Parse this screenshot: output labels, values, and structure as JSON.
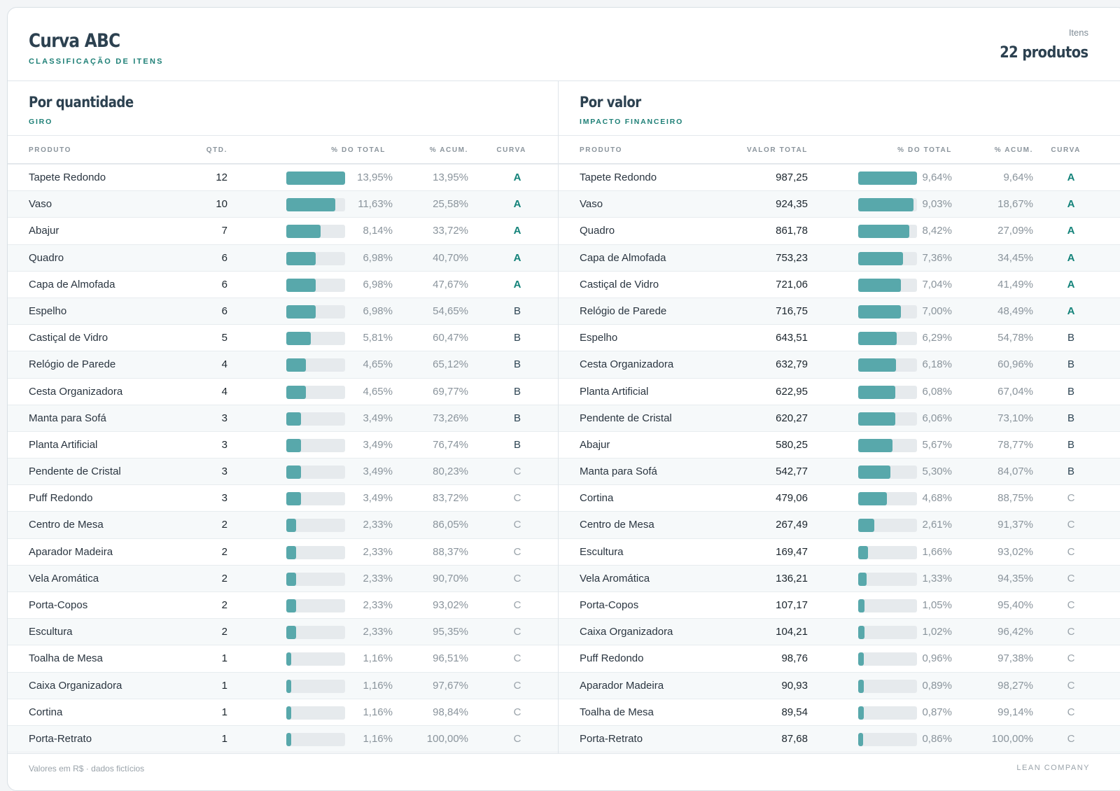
{
  "header": {
    "title": "Curva ABC",
    "subtitle": "CLASSIFICAÇÃO DE ITENS",
    "items_label": "Itens",
    "items_value": "22 produtos"
  },
  "colors": {
    "accent": "#1f8077",
    "bar": "#58a8ab",
    "bar_track": "#e6eaed"
  },
  "left": {
    "title": "Por quantidade",
    "subtitle": "GIRO",
    "columns": [
      "PRODUTO",
      "QTD.",
      "% DO TOTAL",
      "% ACUM.",
      "CURVA"
    ],
    "rows": [
      {
        "name": "Tapete Redondo",
        "value": "12",
        "pct": "13,95%",
        "acc": "13,95%",
        "curve": "A",
        "share": 0.1395
      },
      {
        "name": "Vaso",
        "value": "10",
        "pct": "11,63%",
        "acc": "25,58%",
        "curve": "A",
        "share": 0.1163
      },
      {
        "name": "Abajur",
        "value": "7",
        "pct": "8,14%",
        "acc": "33,72%",
        "curve": "A",
        "share": 0.0814
      },
      {
        "name": "Quadro",
        "value": "6",
        "pct": "6,98%",
        "acc": "40,70%",
        "curve": "A",
        "share": 0.0698
      },
      {
        "name": "Capa de Almofada",
        "value": "6",
        "pct": "6,98%",
        "acc": "47,67%",
        "curve": "A",
        "share": 0.0698
      },
      {
        "name": "Espelho",
        "value": "6",
        "pct": "6,98%",
        "acc": "54,65%",
        "curve": "B",
        "share": 0.0698
      },
      {
        "name": "Castiçal de Vidro",
        "value": "5",
        "pct": "5,81%",
        "acc": "60,47%",
        "curve": "B",
        "share": 0.0581
      },
      {
        "name": "Relógio de Parede",
        "value": "4",
        "pct": "4,65%",
        "acc": "65,12%",
        "curve": "B",
        "share": 0.0465
      },
      {
        "name": "Cesta Organizadora",
        "value": "4",
        "pct": "4,65%",
        "acc": "69,77%",
        "curve": "B",
        "share": 0.0465
      },
      {
        "name": "Manta para Sofá",
        "value": "3",
        "pct": "3,49%",
        "acc": "73,26%",
        "curve": "B",
        "share": 0.0349
      },
      {
        "name": "Planta Artificial",
        "value": "3",
        "pct": "3,49%",
        "acc": "76,74%",
        "curve": "B",
        "share": 0.0349
      },
      {
        "name": "Pendente de Cristal",
        "value": "3",
        "pct": "3,49%",
        "acc": "80,23%",
        "curve": "C",
        "share": 0.0349
      },
      {
        "name": "Puff Redondo",
        "value": "3",
        "pct": "3,49%",
        "acc": "83,72%",
        "curve": "C",
        "share": 0.0349
      },
      {
        "name": "Centro de Mesa",
        "value": "2",
        "pct": "2,33%",
        "acc": "86,05%",
        "curve": "C",
        "share": 0.0233
      },
      {
        "name": "Aparador Madeira",
        "value": "2",
        "pct": "2,33%",
        "acc": "88,37%",
        "curve": "C",
        "share": 0.0233
      },
      {
        "name": "Vela Aromática",
        "value": "2",
        "pct": "2,33%",
        "acc": "90,70%",
        "curve": "C",
        "share": 0.0233
      },
      {
        "name": "Porta-Copos",
        "value": "2",
        "pct": "2,33%",
        "acc": "93,02%",
        "curve": "C",
        "share": 0.0233
      },
      {
        "name": "Escultura",
        "value": "2",
        "pct": "2,33%",
        "acc": "95,35%",
        "curve": "C",
        "share": 0.0233
      },
      {
        "name": "Toalha de Mesa",
        "value": "1",
        "pct": "1,16%",
        "acc": "96,51%",
        "curve": "C",
        "share": 0.0116
      },
      {
        "name": "Caixa Organizadora",
        "value": "1",
        "pct": "1,16%",
        "acc": "97,67%",
        "curve": "C",
        "share": 0.0116
      },
      {
        "name": "Cortina",
        "value": "1",
        "pct": "1,16%",
        "acc": "98,84%",
        "curve": "C",
        "share": 0.0116
      },
      {
        "name": "Porta-Retrato",
        "value": "1",
        "pct": "1,16%",
        "acc": "100,00%",
        "curve": "C",
        "share": 0.0116
      }
    ]
  },
  "right": {
    "title": "Por valor",
    "subtitle": "IMPACTO FINANCEIRO",
    "columns": [
      "PRODUTO",
      "VALOR TOTAL",
      "% DO TOTAL",
      "% ACUM.",
      "CURVA"
    ],
    "rows": [
      {
        "name": "Tapete Redondo",
        "value": "987,25",
        "pct": "9,64%",
        "acc": "9,64%",
        "curve": "A",
        "share": 0.0964
      },
      {
        "name": "Vaso",
        "value": "924,35",
        "pct": "9,03%",
        "acc": "18,67%",
        "curve": "A",
        "share": 0.0903
      },
      {
        "name": "Quadro",
        "value": "861,78",
        "pct": "8,42%",
        "acc": "27,09%",
        "curve": "A",
        "share": 0.0842
      },
      {
        "name": "Capa de Almofada",
        "value": "753,23",
        "pct": "7,36%",
        "acc": "34,45%",
        "curve": "A",
        "share": 0.0736
      },
      {
        "name": "Castiçal de Vidro",
        "value": "721,06",
        "pct": "7,04%",
        "acc": "41,49%",
        "curve": "A",
        "share": 0.0704
      },
      {
        "name": "Relógio de Parede",
        "value": "716,75",
        "pct": "7,00%",
        "acc": "48,49%",
        "curve": "A",
        "share": 0.07
      },
      {
        "name": "Espelho",
        "value": "643,51",
        "pct": "6,29%",
        "acc": "54,78%",
        "curve": "B",
        "share": 0.0629
      },
      {
        "name": "Cesta Organizadora",
        "value": "632,79",
        "pct": "6,18%",
        "acc": "60,96%",
        "curve": "B",
        "share": 0.0618
      },
      {
        "name": "Planta Artificial",
        "value": "622,95",
        "pct": "6,08%",
        "acc": "67,04%",
        "curve": "B",
        "share": 0.0608
      },
      {
        "name": "Pendente de Cristal",
        "value": "620,27",
        "pct": "6,06%",
        "acc": "73,10%",
        "curve": "B",
        "share": 0.0606
      },
      {
        "name": "Abajur",
        "value": "580,25",
        "pct": "5,67%",
        "acc": "78,77%",
        "curve": "B",
        "share": 0.0567
      },
      {
        "name": "Manta para Sofá",
        "value": "542,77",
        "pct": "5,30%",
        "acc": "84,07%",
        "curve": "B",
        "share": 0.053
      },
      {
        "name": "Cortina",
        "value": "479,06",
        "pct": "4,68%",
        "acc": "88,75%",
        "curve": "C",
        "share": 0.0468
      },
      {
        "name": "Centro de Mesa",
        "value": "267,49",
        "pct": "2,61%",
        "acc": "91,37%",
        "curve": "C",
        "share": 0.0261
      },
      {
        "name": "Escultura",
        "value": "169,47",
        "pct": "1,66%",
        "acc": "93,02%",
        "curve": "C",
        "share": 0.0166
      },
      {
        "name": "Vela Aromática",
        "value": "136,21",
        "pct": "1,33%",
        "acc": "94,35%",
        "curve": "C",
        "share": 0.0133
      },
      {
        "name": "Porta-Copos",
        "value": "107,17",
        "pct": "1,05%",
        "acc": "95,40%",
        "curve": "C",
        "share": 0.0105
      },
      {
        "name": "Caixa Organizadora",
        "value": "104,21",
        "pct": "1,02%",
        "acc": "96,42%",
        "curve": "C",
        "share": 0.0102
      },
      {
        "name": "Puff Redondo",
        "value": "98,76",
        "pct": "0,96%",
        "acc": "97,38%",
        "curve": "C",
        "share": 0.0096
      },
      {
        "name": "Aparador Madeira",
        "value": "90,93",
        "pct": "0,89%",
        "acc": "98,27%",
        "curve": "C",
        "share": 0.0089
      },
      {
        "name": "Toalha de Mesa",
        "value": "89,54",
        "pct": "0,87%",
        "acc": "99,14%",
        "curve": "C",
        "share": 0.0087
      },
      {
        "name": "Porta-Retrato",
        "value": "87,68",
        "pct": "0,86%",
        "acc": "100,00%",
        "curve": "C",
        "share": 0.0086
      }
    ]
  },
  "footer": {
    "note": "Valores em R$ · dados fictícios",
    "brand": "LEAN COMPANY"
  }
}
